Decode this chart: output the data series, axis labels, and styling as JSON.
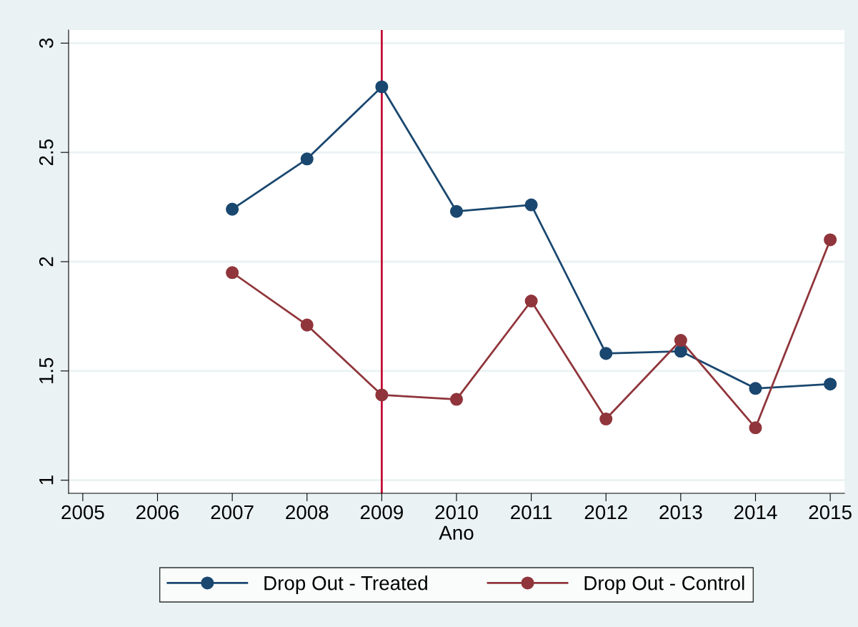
{
  "chart_data": {
    "type": "line",
    "xlabel": "Ano",
    "x": [
      2007,
      2008,
      2009,
      2010,
      2011,
      2012,
      2013,
      2014,
      2015
    ],
    "series": [
      {
        "name": "Drop Out - Treated",
        "color": "#1a476f",
        "values": [
          2.24,
          2.47,
          2.8,
          2.23,
          2.26,
          1.58,
          1.59,
          1.42,
          1.44
        ]
      },
      {
        "name": "Drop Out - Control",
        "color": "#90353b",
        "values": [
          1.95,
          1.71,
          1.39,
          1.37,
          1.82,
          1.28,
          1.64,
          1.24,
          2.1
        ]
      }
    ],
    "xlim": [
      2004.81,
      2015.19
    ],
    "xticks": [
      2005,
      2006,
      2007,
      2008,
      2009,
      2010,
      2011,
      2012,
      2013,
      2014,
      2015
    ],
    "ylim": [
      0.94,
      3.06
    ],
    "yticks": [
      1,
      1.5,
      2,
      2.5,
      3
    ],
    "ref_lines": [
      {
        "axis": "x",
        "value": 2009,
        "color": "#c10534"
      }
    ],
    "grid": "y",
    "legend": "bottom",
    "marker": "circle",
    "line_style": "solid"
  }
}
